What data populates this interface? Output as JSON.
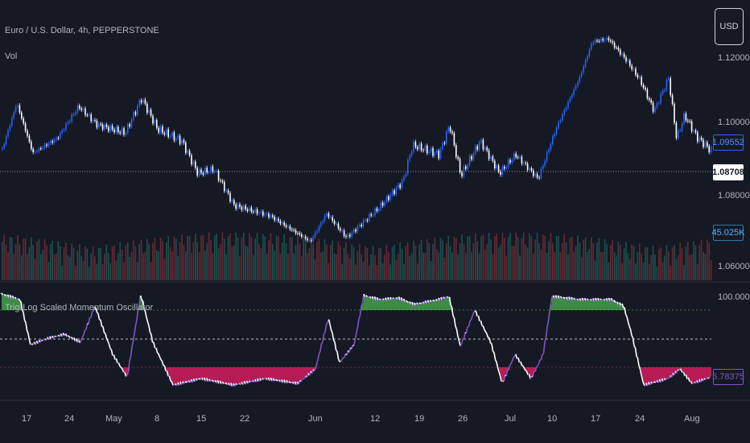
{
  "header": {
    "symbol_title": "Euro / U.S. Dollar, 4h, PEPPERSTONE",
    "volume_label": "Vol",
    "currency_button": "USD"
  },
  "price_axis": {
    "ticks": [
      "1.12000",
      "1.10000",
      "1.08000",
      "1.06000"
    ],
    "last_price_badge": "1.09552",
    "crosshair_price_badge": "1.08708",
    "volume_badge": "45.025K"
  },
  "oscillator": {
    "title": "Trig-Log Scaled Momentum Oscillator",
    "max_tick": "100.00000",
    "value_badge": "5.78375"
  },
  "time_axis": {
    "labels": [
      "17",
      "24",
      "May",
      "8",
      "15",
      "22",
      "Jun",
      "12",
      "19",
      "26",
      "Jul",
      "10",
      "17",
      "24",
      "Aug"
    ]
  },
  "colors": {
    "background": "#151924",
    "up_candle": "#2962ff",
    "down_candle": "#ffffff",
    "overbought_fill": "#4caf50",
    "oversold_fill": "#e91e63",
    "oscillator_rising": "#7e57c2",
    "oscillator_falling": "#ffffff"
  }
}
